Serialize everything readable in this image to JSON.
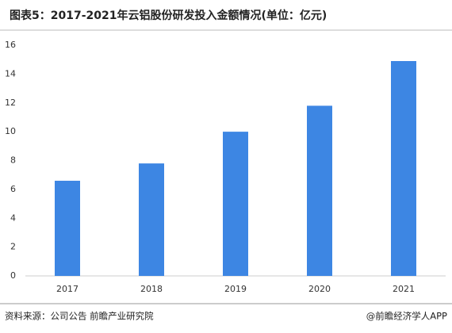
{
  "chart_data": {
    "type": "bar",
    "title": "图表5：2017-2021年云铝股份研发投入金额情况(单位：亿元)",
    "categories": [
      "2017",
      "2018",
      "2019",
      "2020",
      "2021"
    ],
    "values": [
      6.6,
      7.8,
      10.0,
      11.8,
      14.9
    ],
    "color": "#3d86e3",
    "ylim": [
      0,
      16
    ],
    "yticks": [
      0,
      2,
      4,
      6,
      8,
      10,
      12,
      14,
      16
    ],
    "grid": false,
    "source": "资料来源：公司公告 前瞻产业研究院",
    "credit": "@前瞻经济学人APP"
  }
}
